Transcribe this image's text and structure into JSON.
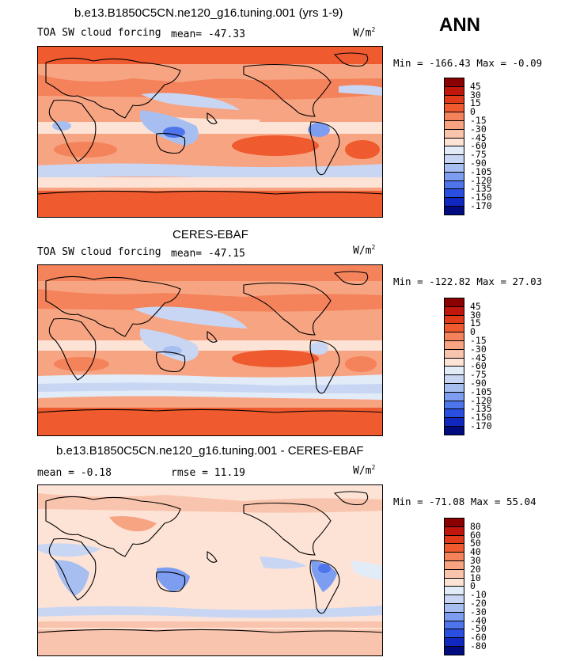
{
  "season": "ANN",
  "units_main": "W/m",
  "units_sup": "2",
  "panels": [
    {
      "title": "b.e13.B1850C5CN.ne120_g16.tuning.001 (yrs 1-9)",
      "variable": "TOA SW cloud forcing",
      "stat1": "mean= -47.33",
      "stat2": "",
      "minmax": "Min = -166.43 Max =  -0.09"
    },
    {
      "title": "CERES-EBAF",
      "variable": "TOA SW cloud forcing",
      "stat1": "mean= -47.15",
      "stat2": "",
      "minmax": "Min = -122.82 Max =  27.03"
    },
    {
      "title": "b.e13.B1850C5CN.ne120_g16.tuning.001 - CERES-EBAF",
      "variable": "",
      "stat1": "mean =  -0.18",
      "stat2": "rmse =  11.19",
      "minmax": "Min = -71.08 Max =  55.04"
    }
  ],
  "colorbars": [
    {
      "labels": [
        "45",
        "30",
        "15",
        "0",
        "-15",
        "-30",
        "-45",
        "-60",
        "-75",
        "-90",
        "-105",
        "-120",
        "-135",
        "-150",
        "-170"
      ],
      "colors": [
        "#8b0000",
        "#c0160c",
        "#e03a1a",
        "#ef5a2e",
        "#f4825a",
        "#f7a483",
        "#f9c4ad",
        "#fde3d6",
        "#e2ebf8",
        "#c8d6f4",
        "#a7bff0",
        "#7d9df0",
        "#4f75ec",
        "#2a4fe0",
        "#1028c0",
        "#000b80"
      ]
    },
    {
      "labels": [
        "45",
        "30",
        "15",
        "0",
        "-15",
        "-30",
        "-45",
        "-60",
        "-75",
        "-90",
        "-105",
        "-120",
        "-135",
        "-150",
        "-170"
      ],
      "colors": [
        "#8b0000",
        "#c0160c",
        "#e03a1a",
        "#ef5a2e",
        "#f4825a",
        "#f7a483",
        "#f9c4ad",
        "#fde3d6",
        "#e2ebf8",
        "#c8d6f4",
        "#a7bff0",
        "#7d9df0",
        "#4f75ec",
        "#2a4fe0",
        "#1028c0",
        "#000b80"
      ]
    },
    {
      "labels": [
        "80",
        "60",
        "50",
        "40",
        "30",
        "20",
        "10",
        "0",
        "-10",
        "-20",
        "-30",
        "-40",
        "-50",
        "-60",
        "-80"
      ],
      "colors": [
        "#8b0000",
        "#c0160c",
        "#e03a1a",
        "#ef5a2e",
        "#f4825a",
        "#f7a483",
        "#f9c4ad",
        "#fde3d6",
        "#e2ebf8",
        "#c8d6f4",
        "#a7bff0",
        "#7d9df0",
        "#4f75ec",
        "#2a4fe0",
        "#1028c0",
        "#000b80"
      ]
    }
  ],
  "chart_data": [
    {
      "type": "heatmap",
      "title": "b.e13.B1850C5CN.ne120_g16.tuning.001 (yrs 1-9)",
      "variable": "TOA SW cloud forcing",
      "units": "W/m2",
      "mean": -47.33,
      "min": -166.43,
      "max": -0.09,
      "contour_levels": [
        45,
        30,
        15,
        0,
        -15,
        -30,
        -45,
        -60,
        -75,
        -90,
        -105,
        -120,
        -135,
        -150,
        -170
      ]
    },
    {
      "type": "heatmap",
      "title": "CERES-EBAF",
      "variable": "TOA SW cloud forcing",
      "units": "W/m2",
      "mean": -47.15,
      "min": -122.82,
      "max": 27.03,
      "contour_levels": [
        45,
        30,
        15,
        0,
        -15,
        -30,
        -45,
        -60,
        -75,
        -90,
        -105,
        -120,
        -135,
        -150,
        -170
      ]
    },
    {
      "type": "heatmap",
      "title": "b.e13.B1850C5CN.ne120_g16.tuning.001 - CERES-EBAF",
      "units": "W/m2",
      "mean": -0.18,
      "rmse": 11.19,
      "min": -71.08,
      "max": 55.04,
      "contour_levels": [
        80,
        60,
        50,
        40,
        30,
        20,
        10,
        0,
        -10,
        -20,
        -30,
        -40,
        -50,
        -60,
        -80
      ]
    }
  ]
}
